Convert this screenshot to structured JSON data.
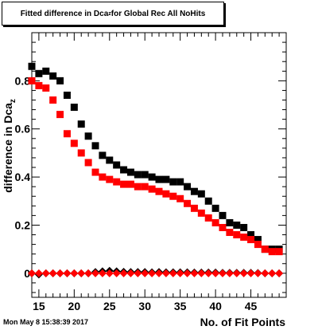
{
  "chart_data": {
    "type": "scatter",
    "title": {
      "main": "Fitted difference in Dca",
      "subscript": "z",
      "rest": " for Global Rec All NoHits"
    },
    "xlabel": "No. of Fit Points",
    "ylabel": {
      "main": "difference in Dca",
      "subscript": "z"
    },
    "xlim": [
      14,
      50
    ],
    "ylim": [
      -0.1,
      1.0
    ],
    "x_ticks": [
      15,
      20,
      25,
      30,
      35,
      40,
      45
    ],
    "y_ticks": [
      0,
      0.2,
      0.4,
      0.6,
      0.8
    ],
    "y_tick_labels": [
      "0",
      "0.2",
      "0.4",
      "0.6",
      "0.8"
    ],
    "grid": false,
    "legend": "none",
    "series": [
      {
        "marker": "square",
        "color": "#000000",
        "x": [
          14,
          15,
          16,
          17,
          18,
          19,
          20,
          21,
          22,
          23,
          24,
          25,
          26,
          27,
          28,
          29,
          30,
          31,
          32,
          33,
          34,
          35,
          36,
          37,
          38,
          39,
          40,
          41,
          42,
          43,
          44,
          45,
          46,
          47,
          48,
          49
        ],
        "y": [
          0.86,
          0.83,
          0.84,
          0.82,
          0.8,
          0.74,
          0.69,
          0.62,
          0.57,
          0.53,
          0.49,
          0.47,
          0.45,
          0.43,
          0.42,
          0.41,
          0.41,
          0.4,
          0.39,
          0.39,
          0.38,
          0.38,
          0.36,
          0.34,
          0.33,
          0.3,
          0.27,
          0.24,
          0.21,
          0.2,
          0.19,
          0.16,
          0.14,
          0.1,
          0.1,
          0.1
        ]
      },
      {
        "marker": "square",
        "color": "#ff0000",
        "x": [
          14,
          15,
          16,
          17,
          18,
          19,
          20,
          21,
          22,
          23,
          24,
          25,
          26,
          27,
          28,
          29,
          30,
          31,
          32,
          33,
          34,
          35,
          36,
          37,
          38,
          39,
          40,
          41,
          42,
          43,
          44,
          45,
          46,
          47,
          48,
          49
        ],
        "y": [
          0.8,
          0.78,
          0.77,
          0.72,
          0.66,
          0.58,
          0.54,
          0.5,
          0.46,
          0.42,
          0.4,
          0.39,
          0.38,
          0.37,
          0.37,
          0.36,
          0.36,
          0.35,
          0.34,
          0.33,
          0.32,
          0.31,
          0.29,
          0.27,
          0.25,
          0.23,
          0.21,
          0.19,
          0.17,
          0.16,
          0.15,
          0.14,
          0.12,
          0.1,
          0.09,
          0.09
        ]
      },
      {
        "marker": "diamond",
        "color": "#000000",
        "x": [
          14,
          15,
          16,
          17,
          18,
          19,
          20,
          21,
          22,
          23,
          24,
          25,
          26,
          27,
          28,
          29,
          30,
          31,
          32,
          33,
          34,
          35,
          36,
          37,
          38,
          39,
          40,
          41,
          42,
          43,
          44,
          45,
          46,
          47,
          48,
          49
        ],
        "y": [
          0.0,
          -0.005,
          0.0,
          0.0,
          0.0,
          0.0,
          0.0,
          0.0,
          0.0,
          0.005,
          0.008,
          0.01,
          0.008,
          0.006,
          0.005,
          0.005,
          0.005,
          0.004,
          0.005,
          0.004,
          0.004,
          0.004,
          0.004,
          0.003,
          0.003,
          0.003,
          0.003,
          0.002,
          0.002,
          0.002,
          0.002,
          0.002,
          0.001,
          0.0,
          0.0,
          0.0
        ]
      },
      {
        "marker": "diamond",
        "color": "#ff0000",
        "x": [
          14,
          15,
          16,
          17,
          18,
          19,
          20,
          21,
          22,
          23,
          24,
          25,
          26,
          27,
          28,
          29,
          30,
          31,
          32,
          33,
          34,
          35,
          36,
          37,
          38,
          39,
          40,
          41,
          42,
          43,
          44,
          45,
          46,
          47,
          48,
          49
        ],
        "y": [
          0.0,
          0.0,
          0.0,
          0.0,
          0.0,
          0.0,
          0.0,
          0.0,
          0.0,
          0.0,
          0.0,
          0.0,
          0.0,
          0.0,
          0.0,
          0.0,
          0.0,
          0.0,
          0.0,
          0.0,
          0.0,
          0.0,
          0.0,
          0.0,
          0.0,
          0.0,
          0.0,
          0.0,
          0.0,
          0.0,
          0.0,
          0.0,
          0.0,
          0.0,
          0.0,
          0.0
        ]
      }
    ]
  },
  "footer": {
    "timestamp": "Mon May  8 15:38:39 2017"
  }
}
